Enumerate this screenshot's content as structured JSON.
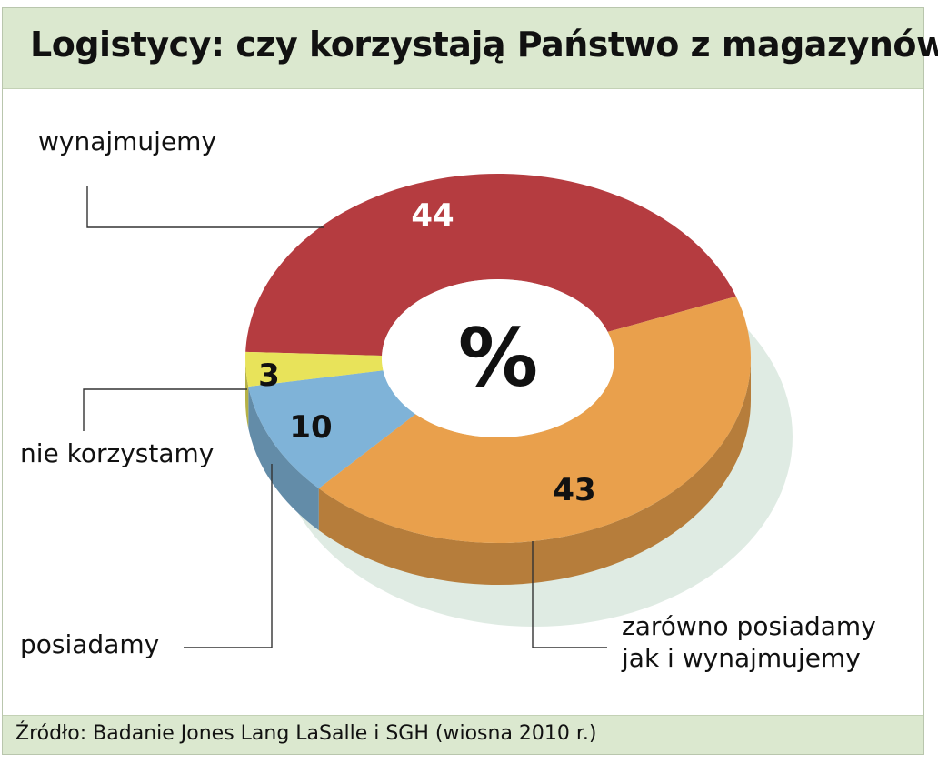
{
  "title": "Logistycy: czy korzystają Państwo z magazynów?",
  "source": "Źródło: Badanie Jones Lang LaSalle i SGH (wiosna 2010 r.)",
  "unit_symbol": "%",
  "colors": {
    "header_bg": "#dbe8cf",
    "wynajmujemy": "#b53c40",
    "zarowno": "#e9a04c",
    "posiadamy": "#7fb3d8",
    "nie_korzystamy": "#e8e35a"
  },
  "chart_data": {
    "type": "pie",
    "donut": true,
    "three_d": true,
    "title": "Logistycy: czy korzystają Państwo z magazynów?",
    "unit": "%",
    "slices": [
      {
        "label": "wynajmujemy",
        "value": 44,
        "color": "#b53c40"
      },
      {
        "label": [
          "zarówno posiadamy",
          "jak i wynajmujemy"
        ],
        "value": 43,
        "color": "#e9a04c"
      },
      {
        "label": "posiadamy",
        "value": 10,
        "color": "#7fb3d8"
      },
      {
        "label": "nie korzystamy",
        "value": 3,
        "color": "#e8e35a"
      }
    ]
  }
}
